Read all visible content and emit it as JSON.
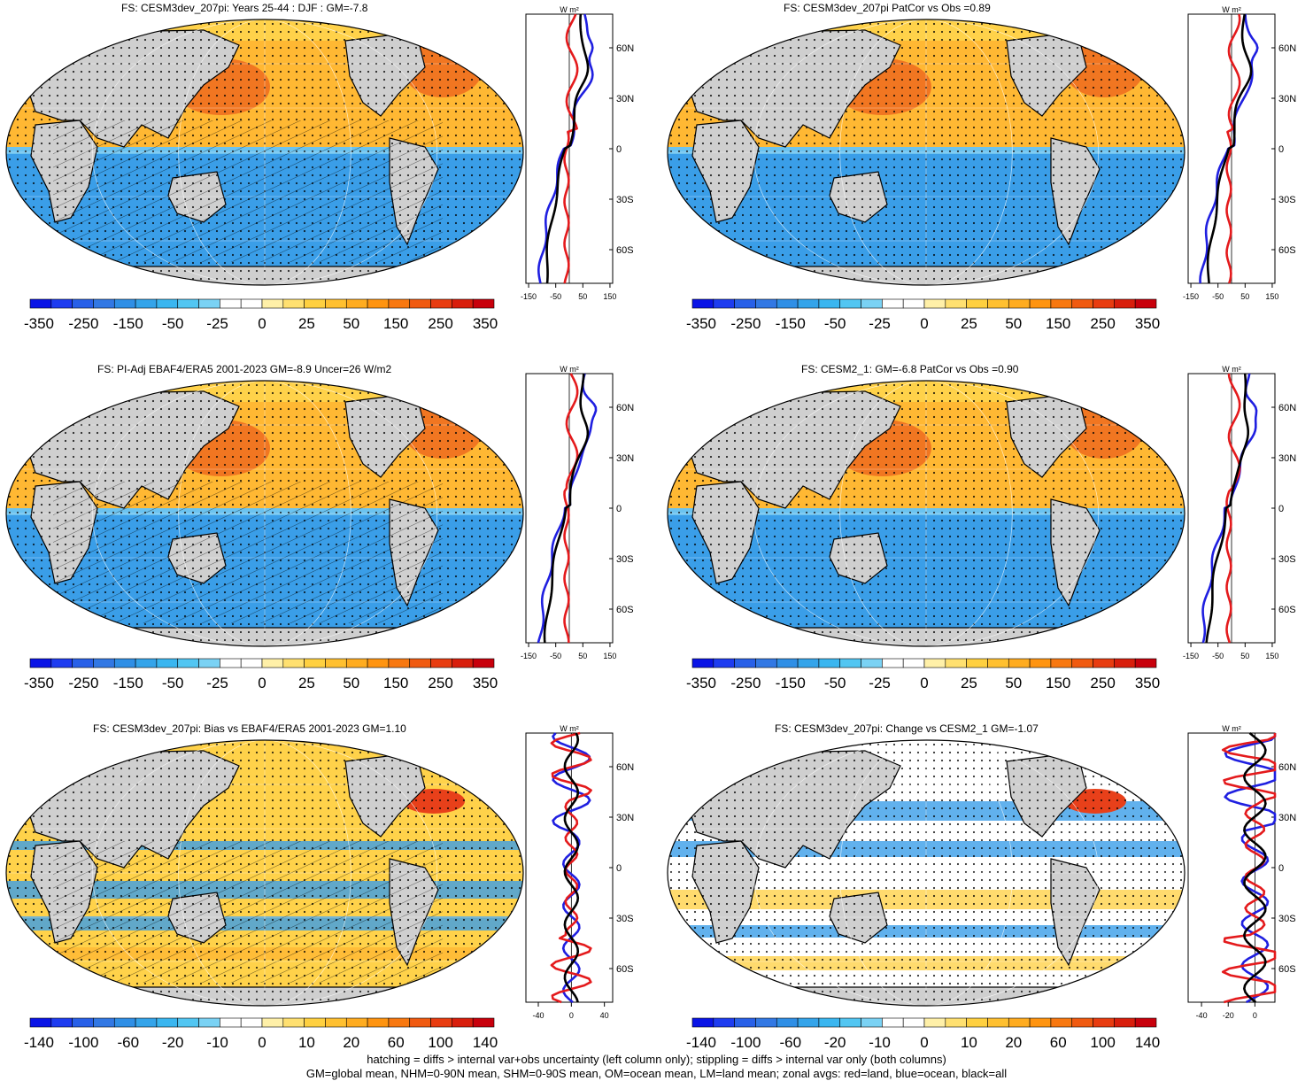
{
  "panels": [
    {
      "id": "p1",
      "title": "FS: CESM3dev_207pi: Years 25-44 : DJF : GM=-7.8",
      "palette": "main",
      "hatch": true,
      "dots": true,
      "variant": 0
    },
    {
      "id": "p2",
      "title": "FS: CESM3dev_207pi PatCor vs Obs =0.89",
      "palette": "main",
      "hatch": false,
      "dots": true,
      "variant": 1
    },
    {
      "id": "p3",
      "title": "FS: PI-Adj EBAF4/ERA5 2001-2023 GM=-8.9 Uncer=26 W/m2",
      "palette": "main",
      "hatch": true,
      "dots": true,
      "variant": 2
    },
    {
      "id": "p4",
      "title": "FS: CESM2_1: GM=-6.8 PatCor vs Obs =0.90",
      "palette": "main",
      "hatch": false,
      "dots": true,
      "variant": 3
    },
    {
      "id": "p5",
      "title": "FS: CESM3dev_207pi: Bias vs EBAF4/ERA5 2001-2023 GM=1.10",
      "palette": "diff",
      "hatch": true,
      "dots": true,
      "variant": 4
    },
    {
      "id": "p6",
      "title": "FS: CESM3dev_207pi: Change vs CESM2_1 GM=-1.07",
      "palette": "diff",
      "hatch": false,
      "dots": true,
      "variant": 5
    }
  ],
  "zonal": {
    "units": "W m²",
    "lat_labels": [
      "60N",
      "30N",
      "0",
      "30S",
      "60S"
    ],
    "main_x_ticks": [
      "-150",
      "-50",
      "50",
      "150"
    ],
    "diff_left_x_ticks": [
      "-40",
      "0",
      "40"
    ],
    "diff_right_x_ticks": [
      "-40",
      "-20",
      "0"
    ],
    "line_colors": {
      "land": "#e41a1c",
      "ocean": "#1f1fe0",
      "all": "#000000"
    }
  },
  "colorbars": {
    "main_labels": [
      "-350",
      "-250",
      "-150",
      "-50",
      "-25",
      "0",
      "25",
      "50",
      "150",
      "250",
      "350"
    ],
    "diff_labels": [
      "-140",
      "-100",
      "-60",
      "-20",
      "-10",
      "0",
      "10",
      "20",
      "60",
      "100",
      "140"
    ],
    "colors": [
      "#0a14e6",
      "#1e3cf0",
      "#2860e8",
      "#3278e4",
      "#2f8fe6",
      "#34a4ea",
      "#3ab6f0",
      "#52c6f2",
      "#7ad2f4",
      "#ffffff",
      "#ffffff",
      "#fff0a8",
      "#ffe070",
      "#ffd040",
      "#ffc030",
      "#ffac20",
      "#ff9410",
      "#f87810",
      "#f05a10",
      "#e83c10",
      "#d81e0c",
      "#c8000c"
    ]
  },
  "colors": {
    "land": "#cfcfcf",
    "positive": "#ffb833",
    "strong_positive": "#e8401a",
    "negative": "#3a9ee8",
    "coast": "#000000"
  },
  "footer": {
    "line1": "hatching = diffs > internal var+obs uncertainty (left column only); stippling = diffs > internal var only (both columns)",
    "line2": "GM=global mean, NHM=0-90N mean, SHM=0-90S mean, OM=ocean mean, LM=land mean; zonal avgs: red=land, blue=ocean, black=all"
  }
}
